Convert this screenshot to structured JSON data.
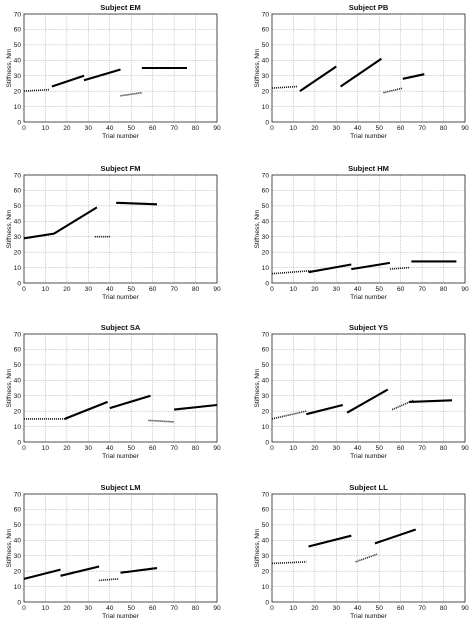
{
  "chart_data": [
    {
      "type": "line",
      "title": "Subject EM",
      "xlabel": "Trial number",
      "ylabel": "Stiffness, Nm",
      "xlim": [
        0,
        90
      ],
      "ylim": [
        0,
        70
      ],
      "xticks": [
        0,
        10,
        20,
        30,
        40,
        50,
        60,
        70,
        80,
        90
      ],
      "yticks": [
        0,
        10,
        20,
        30,
        40,
        50,
        60,
        70
      ],
      "grid": true,
      "segments": [
        {
          "style": "dotted",
          "points": [
            [
              0,
              20
            ],
            [
              12,
              21
            ]
          ]
        },
        {
          "style": "solid",
          "points": [
            [
              13,
              23
            ],
            [
              28,
              30
            ]
          ]
        },
        {
          "style": "solid",
          "points": [
            [
              28,
              27
            ],
            [
              45,
              34
            ]
          ]
        },
        {
          "style": "dotted",
          "points": [
            [
              45,
              17
            ],
            [
              55,
              19
            ]
          ]
        },
        {
          "style": "solid",
          "points": [
            [
              55,
              35
            ],
            [
              76,
              35
            ]
          ]
        }
      ]
    },
    {
      "type": "line",
      "title": "Subject PB",
      "xlabel": "Trial number",
      "ylabel": "Stiffness, Nm",
      "xlim": [
        0,
        90
      ],
      "ylim": [
        0,
        70
      ],
      "xticks": [
        0,
        10,
        20,
        30,
        40,
        50,
        60,
        70,
        80,
        90
      ],
      "yticks": [
        0,
        10,
        20,
        30,
        40,
        50,
        60,
        70
      ],
      "grid": true,
      "segments": [
        {
          "style": "dotted",
          "points": [
            [
              0,
              22
            ],
            [
              12,
              23
            ]
          ]
        },
        {
          "style": "solid",
          "points": [
            [
              13,
              20
            ],
            [
              30,
              36
            ]
          ]
        },
        {
          "style": "solid",
          "points": [
            [
              32,
              23
            ],
            [
              51,
              41
            ]
          ]
        },
        {
          "style": "dotted",
          "points": [
            [
              52,
              19
            ],
            [
              61,
              22
            ]
          ]
        },
        {
          "style": "solid",
          "points": [
            [
              61,
              28
            ],
            [
              71,
              31
            ]
          ]
        }
      ]
    },
    {
      "type": "line",
      "title": "Subject FM",
      "xlabel": "Trial number",
      "ylabel": "Stiffness, Nm",
      "xlim": [
        0,
        90
      ],
      "ylim": [
        0,
        70
      ],
      "xticks": [
        0,
        10,
        20,
        30,
        40,
        50,
        60,
        70,
        80,
        90
      ],
      "yticks": [
        0,
        10,
        20,
        30,
        40,
        50,
        60,
        70
      ],
      "grid": true,
      "segments": [
        {
          "style": "solid",
          "points": [
            [
              0,
              29
            ],
            [
              14,
              32
            ],
            [
              34,
              49
            ]
          ]
        },
        {
          "style": "dotted",
          "points": [
            [
              33,
              30
            ],
            [
              40,
              30
            ]
          ]
        },
        {
          "style": "solid",
          "points": [
            [
              43,
              52
            ],
            [
              62,
              51
            ]
          ]
        }
      ]
    },
    {
      "type": "line",
      "title": "Subject HM",
      "xlabel": "Trial number",
      "ylabel": "Stiffness, Nm",
      "xlim": [
        0,
        90
      ],
      "ylim": [
        0,
        70
      ],
      "xticks": [
        0,
        10,
        20,
        30,
        40,
        50,
        60,
        70,
        80,
        90
      ],
      "yticks": [
        0,
        10,
        20,
        30,
        40,
        50,
        60,
        70
      ],
      "grid": true,
      "segments": [
        {
          "style": "dotted",
          "points": [
            [
              0,
              6
            ],
            [
              18,
              8
            ]
          ]
        },
        {
          "style": "solid",
          "points": [
            [
              17,
              7
            ],
            [
              37,
              12
            ]
          ]
        },
        {
          "style": "solid",
          "points": [
            [
              37,
              9
            ],
            [
              55,
              13
            ]
          ]
        },
        {
          "style": "dotted",
          "points": [
            [
              55,
              9
            ],
            [
              64,
              10
            ]
          ]
        },
        {
          "style": "solid",
          "points": [
            [
              65,
              14
            ],
            [
              86,
              14
            ]
          ]
        }
      ]
    },
    {
      "type": "line",
      "title": "Subject SA",
      "xlabel": "Trial number",
      "ylabel": "Stiffness, Nm",
      "xlim": [
        0,
        90
      ],
      "ylim": [
        0,
        70
      ],
      "xticks": [
        0,
        10,
        20,
        30,
        40,
        50,
        60,
        70,
        80,
        90
      ],
      "yticks": [
        0,
        10,
        20,
        30,
        40,
        50,
        60,
        70
      ],
      "grid": true,
      "segments": [
        {
          "style": "dotted",
          "points": [
            [
              0,
              15
            ],
            [
              20,
              15
            ]
          ]
        },
        {
          "style": "solid",
          "points": [
            [
              19,
              15
            ],
            [
              39,
              26
            ]
          ]
        },
        {
          "style": "solid",
          "points": [
            [
              40,
              22
            ],
            [
              59,
              30
            ]
          ]
        },
        {
          "style": "dotted",
          "points": [
            [
              58,
              14
            ],
            [
              70,
              13
            ]
          ]
        },
        {
          "style": "solid",
          "points": [
            [
              70,
              21
            ],
            [
              90,
              24
            ]
          ]
        }
      ]
    },
    {
      "type": "line",
      "title": "Subject YS",
      "xlabel": "Trial number",
      "ylabel": "Stiffness, Nm",
      "xlim": [
        0,
        90
      ],
      "ylim": [
        0,
        70
      ],
      "xticks": [
        0,
        10,
        20,
        30,
        40,
        50,
        60,
        70,
        80,
        90
      ],
      "yticks": [
        0,
        10,
        20,
        30,
        40,
        50,
        60,
        70
      ],
      "grid": true,
      "segments": [
        {
          "style": "dotted",
          "points": [
            [
              0,
              15
            ],
            [
              16,
              20
            ]
          ]
        },
        {
          "style": "solid",
          "points": [
            [
              16,
              18
            ],
            [
              33,
              24
            ]
          ]
        },
        {
          "style": "solid",
          "points": [
            [
              35,
              19
            ],
            [
              54,
              34
            ]
          ]
        },
        {
          "style": "dotted",
          "points": [
            [
              56,
              21
            ],
            [
              66,
              27
            ]
          ]
        },
        {
          "style": "solid",
          "points": [
            [
              64,
              26
            ],
            [
              84,
              27
            ]
          ]
        }
      ]
    },
    {
      "type": "line",
      "title": "Subject LM",
      "xlabel": "Trial number",
      "ylabel": "Stiffness, Nm",
      "xlim": [
        0,
        90
      ],
      "ylim": [
        0,
        70
      ],
      "xticks": [
        0,
        10,
        20,
        30,
        40,
        50,
        60,
        70,
        80,
        90
      ],
      "yticks": [
        0,
        10,
        20,
        30,
        40,
        50,
        60,
        70
      ],
      "grid": true,
      "segments": [
        {
          "style": "solid",
          "points": [
            [
              0,
              15
            ],
            [
              17,
              21
            ]
          ]
        },
        {
          "style": "solid",
          "points": [
            [
              17,
              17
            ],
            [
              35,
              23
            ]
          ]
        },
        {
          "style": "dotted",
          "points": [
            [
              35,
              14
            ],
            [
              44,
              15
            ]
          ]
        },
        {
          "style": "solid",
          "points": [
            [
              45,
              19
            ],
            [
              62,
              22
            ]
          ]
        }
      ]
    },
    {
      "type": "line",
      "title": "Subject LL",
      "xlabel": "Trial number",
      "ylabel": "Stiffness, Nm",
      "xlim": [
        0,
        90
      ],
      "ylim": [
        0,
        70
      ],
      "xticks": [
        0,
        10,
        20,
        30,
        40,
        50,
        60,
        70,
        80,
        90
      ],
      "yticks": [
        0,
        10,
        20,
        30,
        40,
        50,
        60,
        70
      ],
      "grid": true,
      "segments": [
        {
          "style": "dotted",
          "points": [
            [
              0,
              25
            ],
            [
              16,
              26
            ]
          ]
        },
        {
          "style": "solid",
          "points": [
            [
              17,
              36
            ],
            [
              37,
              43
            ]
          ]
        },
        {
          "style": "dotted",
          "points": [
            [
              39,
              26
            ],
            [
              49,
              31
            ]
          ]
        },
        {
          "style": "solid",
          "points": [
            [
              48,
              38
            ],
            [
              67,
              47
            ]
          ]
        }
      ]
    }
  ]
}
